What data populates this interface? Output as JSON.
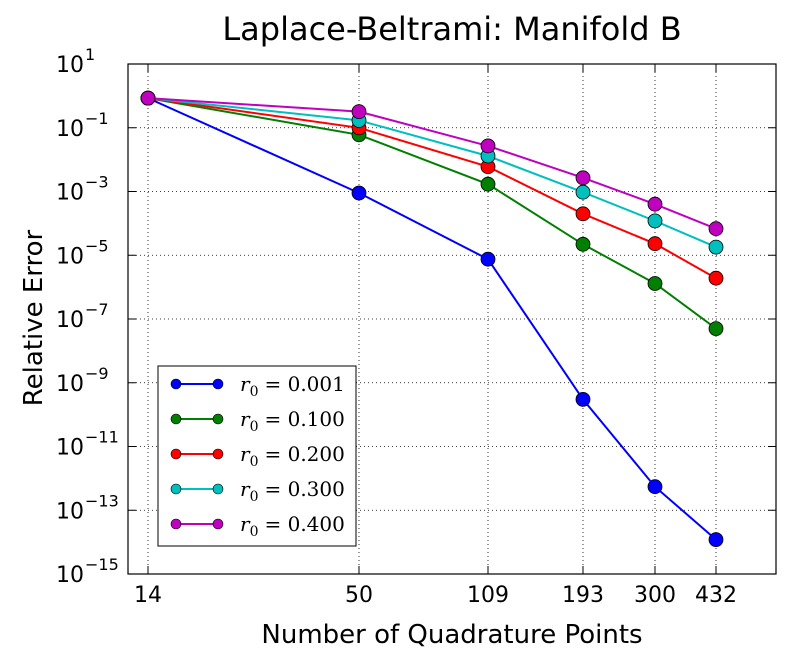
{
  "chart_data": {
    "type": "line",
    "title": "Laplace-Beltrami: Manifold B",
    "xlabel": "Number of Quadrature Points",
    "ylabel": "Relative Error",
    "x_scale": "categorical",
    "y_scale": "log",
    "categories": [
      "14",
      "50",
      "109",
      "193",
      "300",
      "432"
    ],
    "ylim": [
      1e-15,
      10
    ],
    "y_ticks": [
      {
        "base": "10",
        "exp": "1"
      },
      {
        "base": "10",
        "exp": "−1"
      },
      {
        "base": "10",
        "exp": "−3"
      },
      {
        "base": "10",
        "exp": "−5"
      },
      {
        "base": "10",
        "exp": "−7"
      },
      {
        "base": "10",
        "exp": "−9"
      },
      {
        "base": "10",
        "exp": "−11"
      },
      {
        "base": "10",
        "exp": "−13"
      },
      {
        "base": "10",
        "exp": "−15"
      }
    ],
    "grid": true,
    "legend_position": "bottom-left",
    "series": [
      {
        "name": "r0 = 0.001",
        "r_label": "r",
        "r_sub": "0",
        "r_value": "= 0.001",
        "color": "#0000ff",
        "values": [
          0.85,
          0.0009,
          7.5e-06,
          3e-10,
          5.5e-13,
          1.2e-14
        ]
      },
      {
        "name": "r0 = 0.100",
        "r_label": "r",
        "r_sub": "0",
        "r_value": "= 0.100",
        "color": "#007f00",
        "values": [
          0.85,
          0.06,
          0.0017,
          2.2e-05,
          1.3e-06,
          5e-08
        ]
      },
      {
        "name": "r0 = 0.200",
        "r_label": "r",
        "r_sub": "0",
        "r_value": "= 0.200",
        "color": "#ff0000",
        "values": [
          0.85,
          0.1,
          0.006,
          0.0002,
          2.3e-05,
          1.9e-06
        ]
      },
      {
        "name": "r0 = 0.300",
        "r_label": "r",
        "r_sub": "0",
        "r_value": "= 0.300",
        "color": "#00bfbf",
        "values": [
          0.85,
          0.17,
          0.013,
          0.00095,
          0.00012,
          1.8e-05
        ]
      },
      {
        "name": "r0 = 0.400",
        "r_label": "r",
        "r_sub": "0",
        "r_value": "= 0.400",
        "color": "#bf00bf",
        "values": [
          0.85,
          0.32,
          0.027,
          0.0027,
          0.0004,
          6.8e-05
        ]
      }
    ]
  }
}
